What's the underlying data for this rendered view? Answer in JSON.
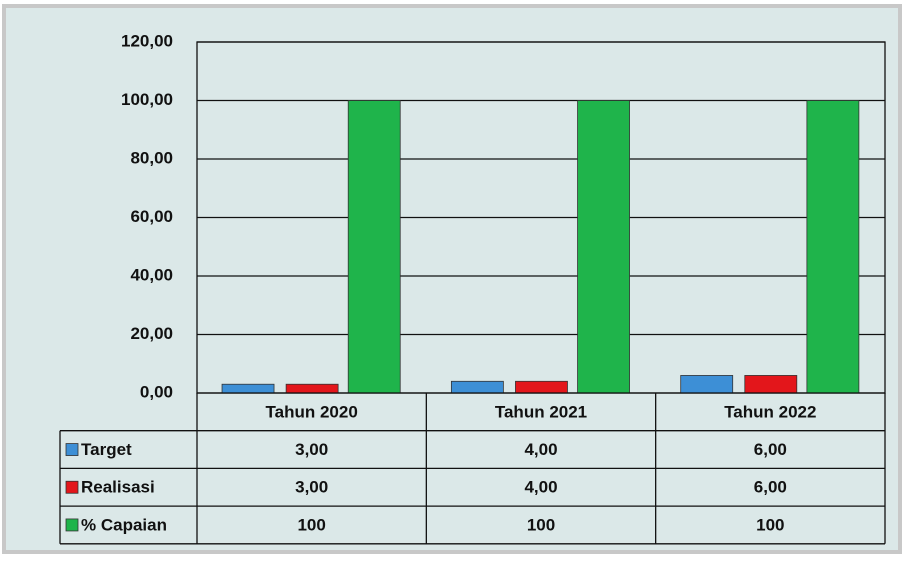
{
  "chart_data": {
    "type": "bar",
    "categories": [
      "Tahun 2020",
      "Tahun 2021",
      "Tahun 2022"
    ],
    "series": [
      {
        "name": "Target",
        "color": "#3d8fd6",
        "values": [
          3,
          4,
          6
        ],
        "value_labels": [
          "3,00",
          "4,00",
          "6,00"
        ]
      },
      {
        "name": "Realisasi",
        "color": "#e3161b",
        "values": [
          3,
          4,
          6
        ],
        "value_labels": [
          "3,00",
          "4,00",
          "6,00"
        ]
      },
      {
        "name": "% Capaian",
        "color": "#1fb44b",
        "values": [
          100,
          100,
          100
        ],
        "value_labels": [
          "100",
          "100",
          "100"
        ]
      }
    ],
    "ylim": [
      0,
      120
    ],
    "yticks": [
      {
        "value": 0,
        "label": "0,00"
      },
      {
        "value": 20,
        "label": "20,00"
      },
      {
        "value": 40,
        "label": "40,00"
      },
      {
        "value": 60,
        "label": "60,00"
      },
      {
        "value": 80,
        "label": "80,00"
      },
      {
        "value": 100,
        "label": "100,00"
      },
      {
        "value": 120,
        "label": "120,00"
      }
    ],
    "grid": true
  }
}
